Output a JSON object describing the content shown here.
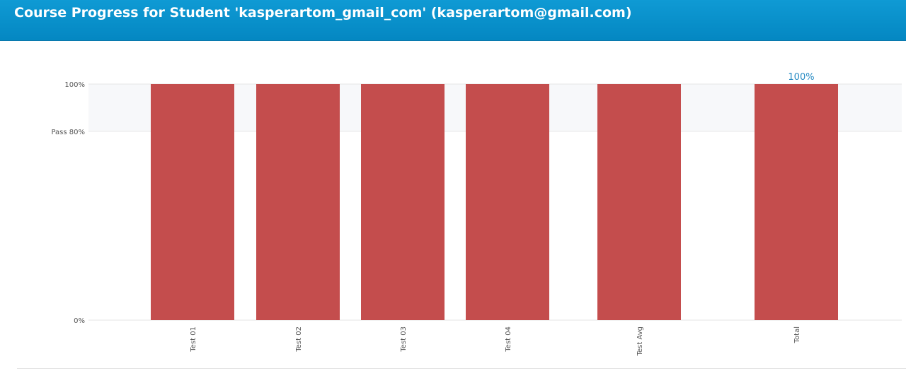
{
  "header": {
    "title": "Course Progress for Student 'kasperartom_gmail_com' (kasperartom@gmail.com)"
  },
  "chart_data": {
    "type": "bar",
    "categories": [
      "Test 01",
      "Test 02",
      "Test 03",
      "Test 04",
      "Test Avg",
      "Total"
    ],
    "values": [
      100,
      100,
      100,
      100,
      100,
      100
    ],
    "ylim": [
      0,
      100
    ],
    "y_ticks": [
      {
        "value": 100,
        "label": "100%"
      },
      {
        "value": 80,
        "label": "Pass 80%"
      },
      {
        "value": 0,
        "label": "0%"
      }
    ],
    "pass_band": [
      80,
      100
    ],
    "data_labels": [
      {
        "category": "Total",
        "label": "100%"
      }
    ],
    "colors": {
      "bar": "#c44d4d",
      "pass_band": "#f7f8fa",
      "grid": "#e6e6e6",
      "data_label": "#2a8cc4",
      "tick_text": "#555555"
    }
  }
}
